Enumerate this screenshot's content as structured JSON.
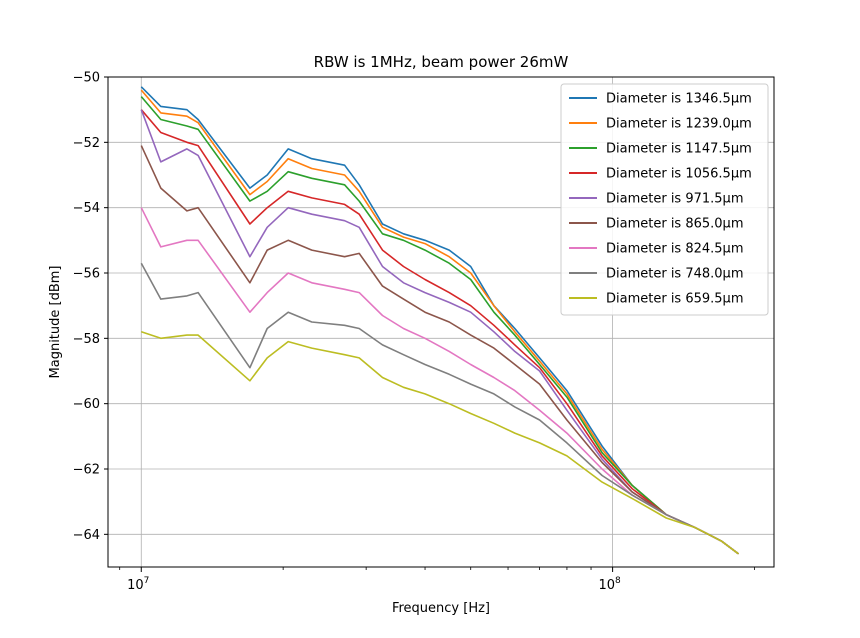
{
  "chart_data": {
    "type": "line",
    "title": "RBW is 1MHz, beam power 26mW",
    "xlabel": "Frequency [Hz]",
    "ylabel": "Magnitude [dBm]",
    "xscale": "log",
    "xlim": [
      8500000,
      220000000
    ],
    "ylim": [
      -65,
      -50
    ],
    "grid": true,
    "legend_position": "top-right",
    "x_ticks": [
      {
        "value": 10000000,
        "base": "10",
        "exp": "7"
      },
      {
        "value": 100000000,
        "base": "10",
        "exp": "8"
      }
    ],
    "y_ticks": [
      {
        "value": -50,
        "label": "−50"
      },
      {
        "value": -52,
        "label": "−52"
      },
      {
        "value": -54,
        "label": "−54"
      },
      {
        "value": -56,
        "label": "−56"
      },
      {
        "value": -58,
        "label": "−58"
      },
      {
        "value": -60,
        "label": "−60"
      },
      {
        "value": -62,
        "label": "−62"
      },
      {
        "value": -64,
        "label": "−64"
      }
    ],
    "series": [
      {
        "name": "Diameter is 1346.5μm",
        "color": "#1f77b4",
        "x": [
          10000000,
          11000000,
          12500000,
          13200000,
          17000000,
          18500000,
          20500000,
          23000000,
          27000000,
          29000000,
          32500000,
          36000000,
          40000000,
          45000000,
          50000000,
          56000000,
          62000000,
          70000000,
          80000000,
          95000000,
          110000000,
          130000000,
          150000000,
          170000000,
          185000000
        ],
        "y": [
          -50.3,
          -50.9,
          -51.0,
          -51.3,
          -53.4,
          -53.0,
          -52.2,
          -52.5,
          -52.7,
          -53.3,
          -54.5,
          -54.8,
          -55.0,
          -55.3,
          -55.8,
          -57.0,
          -57.7,
          -58.6,
          -59.6,
          -61.3,
          -62.5,
          -63.4,
          -63.8,
          -64.2,
          -64.6
        ]
      },
      {
        "name": "Diameter is 1239.0μm",
        "color": "#ff7f0e",
        "x": [
          10000000,
          11000000,
          12500000,
          13200000,
          17000000,
          18500000,
          20500000,
          23000000,
          27000000,
          29000000,
          32500000,
          36000000,
          40000000,
          45000000,
          50000000,
          56000000,
          62000000,
          70000000,
          80000000,
          95000000,
          110000000,
          130000000,
          150000000,
          170000000,
          185000000
        ],
        "y": [
          -50.4,
          -51.1,
          -51.2,
          -51.4,
          -53.6,
          -53.2,
          -52.5,
          -52.8,
          -53.0,
          -53.5,
          -54.6,
          -54.9,
          -55.1,
          -55.5,
          -56.0,
          -57.0,
          -57.8,
          -58.7,
          -59.7,
          -61.4,
          -62.5,
          -63.4,
          -63.8,
          -64.2,
          -64.6
        ]
      },
      {
        "name": "Diameter is 1147.5μm",
        "color": "#2ca02c",
        "x": [
          10000000,
          11000000,
          12500000,
          13200000,
          17000000,
          18500000,
          20500000,
          23000000,
          27000000,
          29000000,
          32500000,
          36000000,
          40000000,
          45000000,
          50000000,
          56000000,
          62000000,
          70000000,
          80000000,
          95000000,
          110000000,
          130000000,
          150000000,
          170000000,
          185000000
        ],
        "y": [
          -50.6,
          -51.3,
          -51.5,
          -51.6,
          -53.8,
          -53.5,
          -52.9,
          -53.1,
          -53.3,
          -53.8,
          -54.8,
          -55.0,
          -55.3,
          -55.7,
          -56.2,
          -57.2,
          -57.9,
          -58.8,
          -59.8,
          -61.5,
          -62.5,
          -63.4,
          -63.8,
          -64.2,
          -64.6
        ]
      },
      {
        "name": "Diameter is 1056.5μm",
        "color": "#d62728",
        "x": [
          10000000,
          11000000,
          12500000,
          13200000,
          17000000,
          18500000,
          20500000,
          23000000,
          27000000,
          29000000,
          32500000,
          36000000,
          40000000,
          45000000,
          50000000,
          56000000,
          62000000,
          70000000,
          80000000,
          95000000,
          110000000,
          130000000,
          150000000,
          170000000,
          185000000
        ],
        "y": [
          -51.0,
          -51.7,
          -52.0,
          -52.1,
          -54.5,
          -54.0,
          -53.5,
          -53.7,
          -53.9,
          -54.2,
          -55.3,
          -55.8,
          -56.2,
          -56.6,
          -57.0,
          -57.6,
          -58.2,
          -58.9,
          -60.0,
          -61.6,
          -62.6,
          -63.4,
          -63.8,
          -64.2,
          -64.6
        ]
      },
      {
        "name": "Diameter is 971.5μm",
        "color": "#9467bd",
        "x": [
          10000000,
          11000000,
          12500000,
          13200000,
          17000000,
          18500000,
          20500000,
          23000000,
          27000000,
          29000000,
          32500000,
          36000000,
          40000000,
          45000000,
          50000000,
          56000000,
          62000000,
          70000000,
          80000000,
          95000000,
          110000000,
          130000000,
          150000000,
          170000000,
          185000000
        ],
        "y": [
          -51.0,
          -52.6,
          -52.2,
          -52.4,
          -55.5,
          -54.6,
          -54.0,
          -54.2,
          -54.4,
          -54.6,
          -55.8,
          -56.3,
          -56.6,
          -56.9,
          -57.2,
          -57.8,
          -58.4,
          -59.0,
          -60.2,
          -61.7,
          -62.7,
          -63.4,
          -63.8,
          -64.2,
          -64.6
        ]
      },
      {
        "name": "Diameter is 865.0μm",
        "color": "#8c564b",
        "x": [
          10000000,
          11000000,
          12500000,
          13200000,
          17000000,
          18500000,
          20500000,
          23000000,
          27000000,
          29000000,
          32500000,
          36000000,
          40000000,
          45000000,
          50000000,
          56000000,
          62000000,
          70000000,
          80000000,
          95000000,
          110000000,
          130000000,
          150000000,
          170000000,
          185000000
        ],
        "y": [
          -52.1,
          -53.4,
          -54.1,
          -54.0,
          -56.3,
          -55.3,
          -55.0,
          -55.3,
          -55.5,
          -55.4,
          -56.4,
          -56.8,
          -57.2,
          -57.5,
          -57.9,
          -58.3,
          -58.8,
          -59.4,
          -60.5,
          -61.8,
          -62.7,
          -63.4,
          -63.8,
          -64.2,
          -64.6
        ]
      },
      {
        "name": "Diameter is 824.5μm",
        "color": "#e377c2",
        "x": [
          10000000,
          11000000,
          12500000,
          13200000,
          17000000,
          18500000,
          20500000,
          23000000,
          27000000,
          29000000,
          32500000,
          36000000,
          40000000,
          45000000,
          50000000,
          56000000,
          62000000,
          70000000,
          80000000,
          95000000,
          110000000,
          130000000,
          150000000,
          170000000,
          185000000
        ],
        "y": [
          -54.0,
          -55.2,
          -55.0,
          -55.0,
          -57.2,
          -56.6,
          -56.0,
          -56.3,
          -56.5,
          -56.6,
          -57.3,
          -57.7,
          -58.0,
          -58.4,
          -58.8,
          -59.2,
          -59.6,
          -60.2,
          -60.9,
          -62.0,
          -62.8,
          -63.4,
          -63.8,
          -64.2,
          -64.6
        ]
      },
      {
        "name": "Diameter is 748.0μm",
        "color": "#7f7f7f",
        "x": [
          10000000,
          11000000,
          12500000,
          13200000,
          17000000,
          18500000,
          20500000,
          23000000,
          27000000,
          29000000,
          32500000,
          36000000,
          40000000,
          45000000,
          50000000,
          56000000,
          62000000,
          70000000,
          80000000,
          95000000,
          110000000,
          130000000,
          150000000,
          170000000,
          185000000
        ],
        "y": [
          -55.7,
          -56.8,
          -56.7,
          -56.6,
          -58.9,
          -57.7,
          -57.2,
          -57.5,
          -57.6,
          -57.7,
          -58.2,
          -58.5,
          -58.8,
          -59.1,
          -59.4,
          -59.7,
          -60.1,
          -60.5,
          -61.2,
          -62.2,
          -62.8,
          -63.4,
          -63.8,
          -64.2,
          -64.6
        ]
      },
      {
        "name": "Diameter is 659.5μm",
        "color": "#bcbd22",
        "x": [
          10000000,
          11000000,
          12500000,
          13200000,
          17000000,
          18500000,
          20500000,
          23000000,
          27000000,
          29000000,
          32500000,
          36000000,
          40000000,
          45000000,
          50000000,
          56000000,
          62000000,
          70000000,
          80000000,
          95000000,
          110000000,
          130000000,
          150000000,
          170000000,
          185000000
        ],
        "y": [
          -57.8,
          -58.0,
          -57.9,
          -57.9,
          -59.3,
          -58.6,
          -58.1,
          -58.3,
          -58.5,
          -58.6,
          -59.2,
          -59.5,
          -59.7,
          -60.0,
          -60.3,
          -60.6,
          -60.9,
          -61.2,
          -61.6,
          -62.4,
          -62.9,
          -63.5,
          -63.8,
          -64.2,
          -64.6
        ]
      }
    ]
  }
}
